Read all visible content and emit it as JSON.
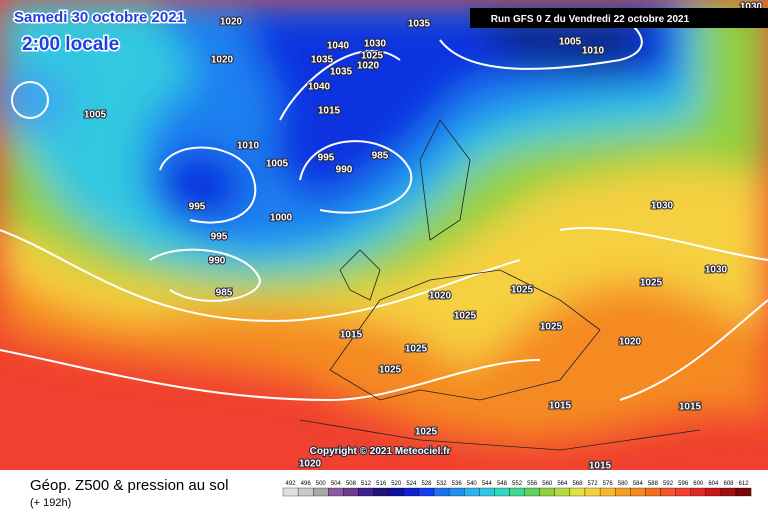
{
  "header": {
    "date": "Samedi 30 octobre 2021",
    "time": "2:00 locale",
    "run": "Run GFS 0 Z du Vendredi 22 octobre 2021",
    "copyright": "Copyright © 2021 Meteociel.fr"
  },
  "footer": {
    "title": "Géop. Z500 & pression au sol",
    "lead": "(+ 192h)",
    "scale": [
      "492",
      "496",
      "500",
      "504",
      "508",
      "512",
      "516",
      "520",
      "524",
      "528",
      "532",
      "536",
      "540",
      "544",
      "548",
      "552",
      "556",
      "560",
      "564",
      "568",
      "572",
      "576",
      "580",
      "584",
      "588",
      "592",
      "596",
      "600",
      "604",
      "608",
      "612"
    ]
  },
  "isobars": [
    "1020",
    "1020",
    "1035",
    "1030",
    "1040",
    "1025",
    "1035",
    "1020",
    "1035",
    "1040",
    "1015",
    "1010",
    "1005",
    "995",
    "985",
    "990",
    "995",
    "1000",
    "995",
    "990",
    "985",
    "1005",
    "1010",
    "1030",
    "1030",
    "1030",
    "1025",
    "1020",
    "1025",
    "1025",
    "1025",
    "1015",
    "1020",
    "1025",
    "1025",
    "1015",
    "1015",
    "1025",
    "1020",
    "1015",
    "1005"
  ]
}
